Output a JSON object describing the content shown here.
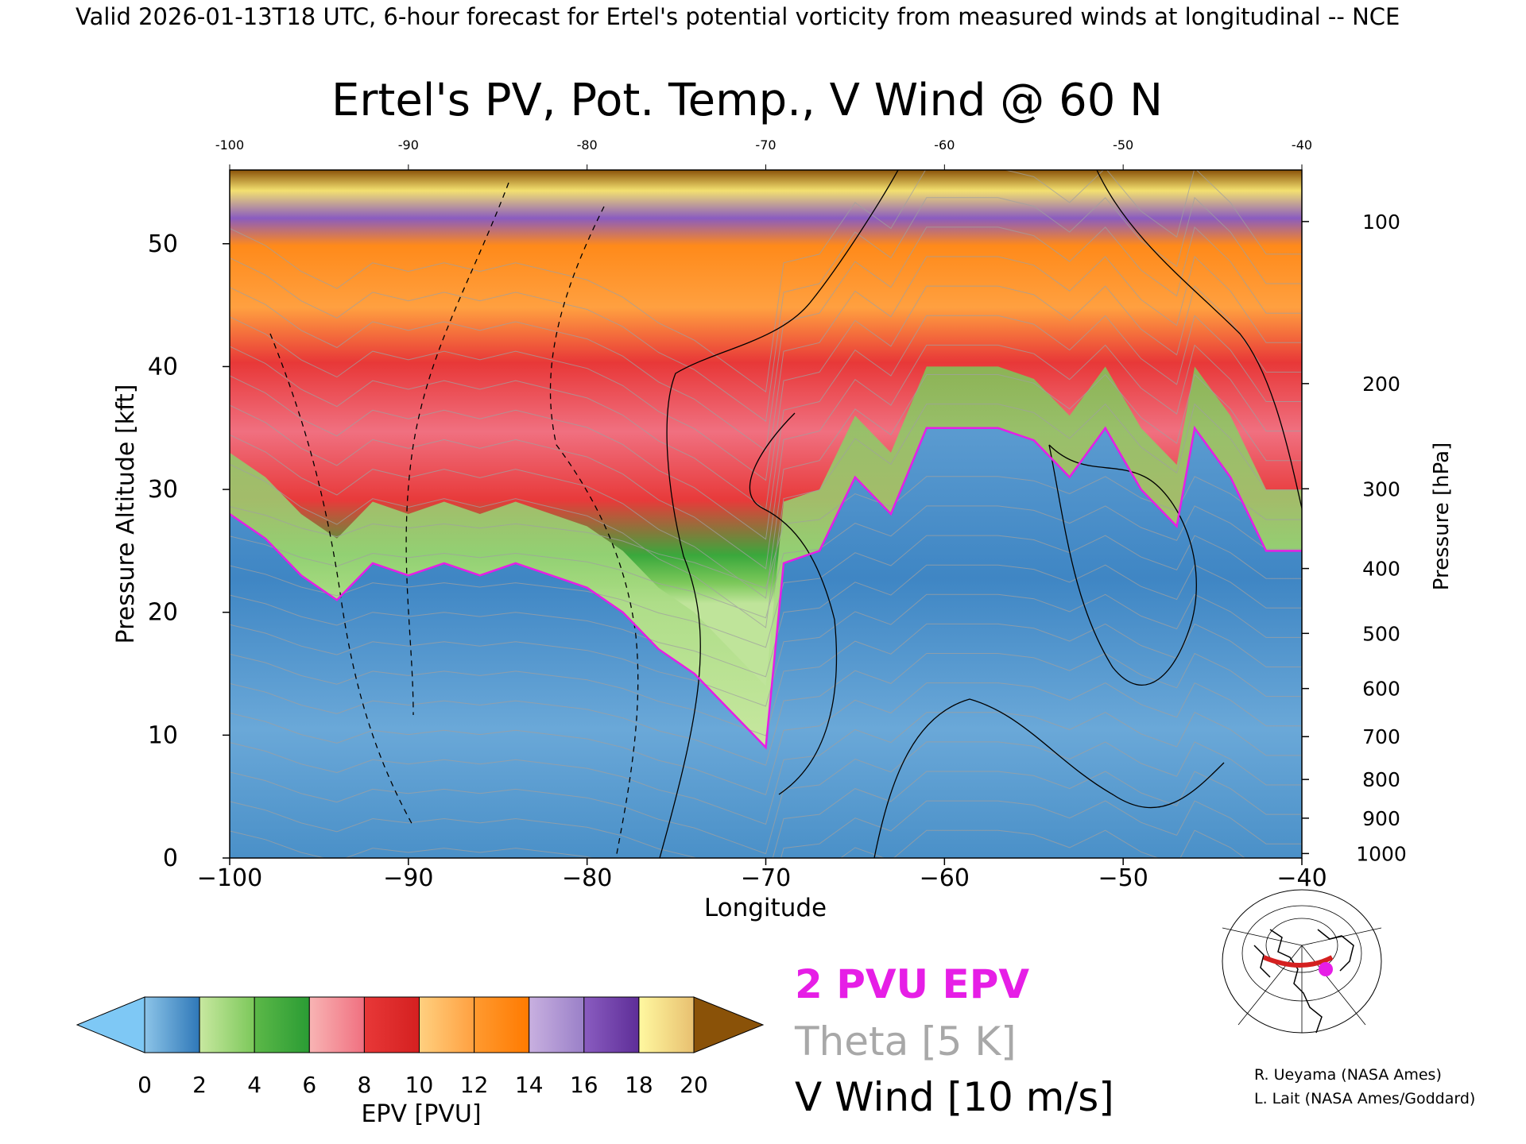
{
  "header": {
    "valid_line": "Valid 2026-01-13T18 UTC, 6-hour forecast for Ertel's potential vorticity from measured winds at longitudinal -- NCE"
  },
  "chart_data": {
    "type": "heatmap",
    "title": "Ertel's PV, Pot. Temp., V Wind @ 60 N",
    "xlabel": "Longitude",
    "ylabel": "Pressure Altitude [kft]",
    "y2label": "Pressure [hPa]",
    "xlim": [
      -100,
      -40
    ],
    "ylim": [
      0,
      56
    ],
    "x_ticks": [
      -100,
      -90,
      -80,
      -70,
      -60,
      -50,
      -40
    ],
    "x_tick_labels": [
      "−100",
      "−90",
      "−80",
      "−70",
      "−60",
      "−50",
      "−40"
    ],
    "top_tick_labels": [
      "-100",
      "-90",
      "-80",
      "-70",
      "-60",
      "-50",
      "-40"
    ],
    "y_ticks": [
      0,
      10,
      20,
      30,
      40,
      50
    ],
    "y_tick_labels": [
      "0",
      "10",
      "20",
      "30",
      "40",
      "50"
    ],
    "pressure_ticks": [
      {
        "hpa": 1000,
        "label": "1000"
      },
      {
        "hpa": 900,
        "label": "900"
      },
      {
        "hpa": 800,
        "label": "800"
      },
      {
        "hpa": 700,
        "label": "700"
      },
      {
        "hpa": 600,
        "label": "600"
      },
      {
        "hpa": 500,
        "label": "500"
      },
      {
        "hpa": 400,
        "label": "400"
      },
      {
        "hpa": 300,
        "label": "300"
      },
      {
        "hpa": 200,
        "label": "200"
      },
      {
        "hpa": 100,
        "label": "100"
      }
    ],
    "tropopause_2pvu_kft": [
      {
        "lon": -100,
        "alt": 28
      },
      {
        "lon": -98,
        "alt": 26
      },
      {
        "lon": -96,
        "alt": 23
      },
      {
        "lon": -94,
        "alt": 21
      },
      {
        "lon": -92,
        "alt": 24
      },
      {
        "lon": -90,
        "alt": 23
      },
      {
        "lon": -88,
        "alt": 24
      },
      {
        "lon": -86,
        "alt": 23
      },
      {
        "lon": -84,
        "alt": 24
      },
      {
        "lon": -82,
        "alt": 23
      },
      {
        "lon": -80,
        "alt": 22
      },
      {
        "lon": -78,
        "alt": 20
      },
      {
        "lon": -76,
        "alt": 17
      },
      {
        "lon": -74,
        "alt": 15
      },
      {
        "lon": -72,
        "alt": 12
      },
      {
        "lon": -70,
        "alt": 9
      },
      {
        "lon": -69,
        "alt": 24
      },
      {
        "lon": -67,
        "alt": 25
      },
      {
        "lon": -65,
        "alt": 31
      },
      {
        "lon": -63,
        "alt": 28
      },
      {
        "lon": -61,
        "alt": 35
      },
      {
        "lon": -59,
        "alt": 35
      },
      {
        "lon": -57,
        "alt": 35
      },
      {
        "lon": -55,
        "alt": 34
      },
      {
        "lon": -53,
        "alt": 31
      },
      {
        "lon": -51,
        "alt": 35
      },
      {
        "lon": -49,
        "alt": 30
      },
      {
        "lon": -47,
        "alt": 27
      },
      {
        "lon": -46,
        "alt": 35
      },
      {
        "lon": -44,
        "alt": 31
      },
      {
        "lon": -42,
        "alt": 25
      },
      {
        "lon": -40,
        "alt": 25
      }
    ],
    "colorbar": {
      "label": "EPV [PVU]",
      "min": 0,
      "max": 20,
      "tick_values": [
        0,
        2,
        4,
        6,
        8,
        10,
        12,
        14,
        16,
        18,
        20
      ],
      "tick_labels": [
        "0",
        "2",
        "4",
        "6",
        "8",
        "10",
        "12",
        "14",
        "16",
        "18",
        "20"
      ],
      "under_color": "#7ec8f5",
      "over_color": "#8a5208",
      "band_colors": [
        [
          "#8cc4e8",
          "#2f78b8"
        ],
        [
          "#c8e8a0",
          "#7cc85a"
        ],
        [
          "#5cb848",
          "#2a9c34"
        ],
        [
          "#f8b4b4",
          "#f07080"
        ],
        [
          "#e83838",
          "#d42020"
        ],
        [
          "#ffd080",
          "#ffa040"
        ],
        [
          "#ff9a30",
          "#ff7a00"
        ],
        [
          "#c8b0e0",
          "#9a80c8"
        ],
        [
          "#8a5cc0",
          "#5e2e98"
        ],
        [
          "#fff8a0",
          "#e8c070"
        ]
      ]
    },
    "legend": {
      "epv_contour": "2 PVU EPV",
      "theta": "Theta [5 K]",
      "v_wind": "V Wind [10 m/s]"
    }
  },
  "map_inset": {
    "track_color": "#d42020",
    "marker_color": "#e61ee6"
  },
  "credits": {
    "line1": "R. Ueyama (NASA Ames)",
    "line2": "L. Lait (NASA Ames/Goddard)"
  }
}
